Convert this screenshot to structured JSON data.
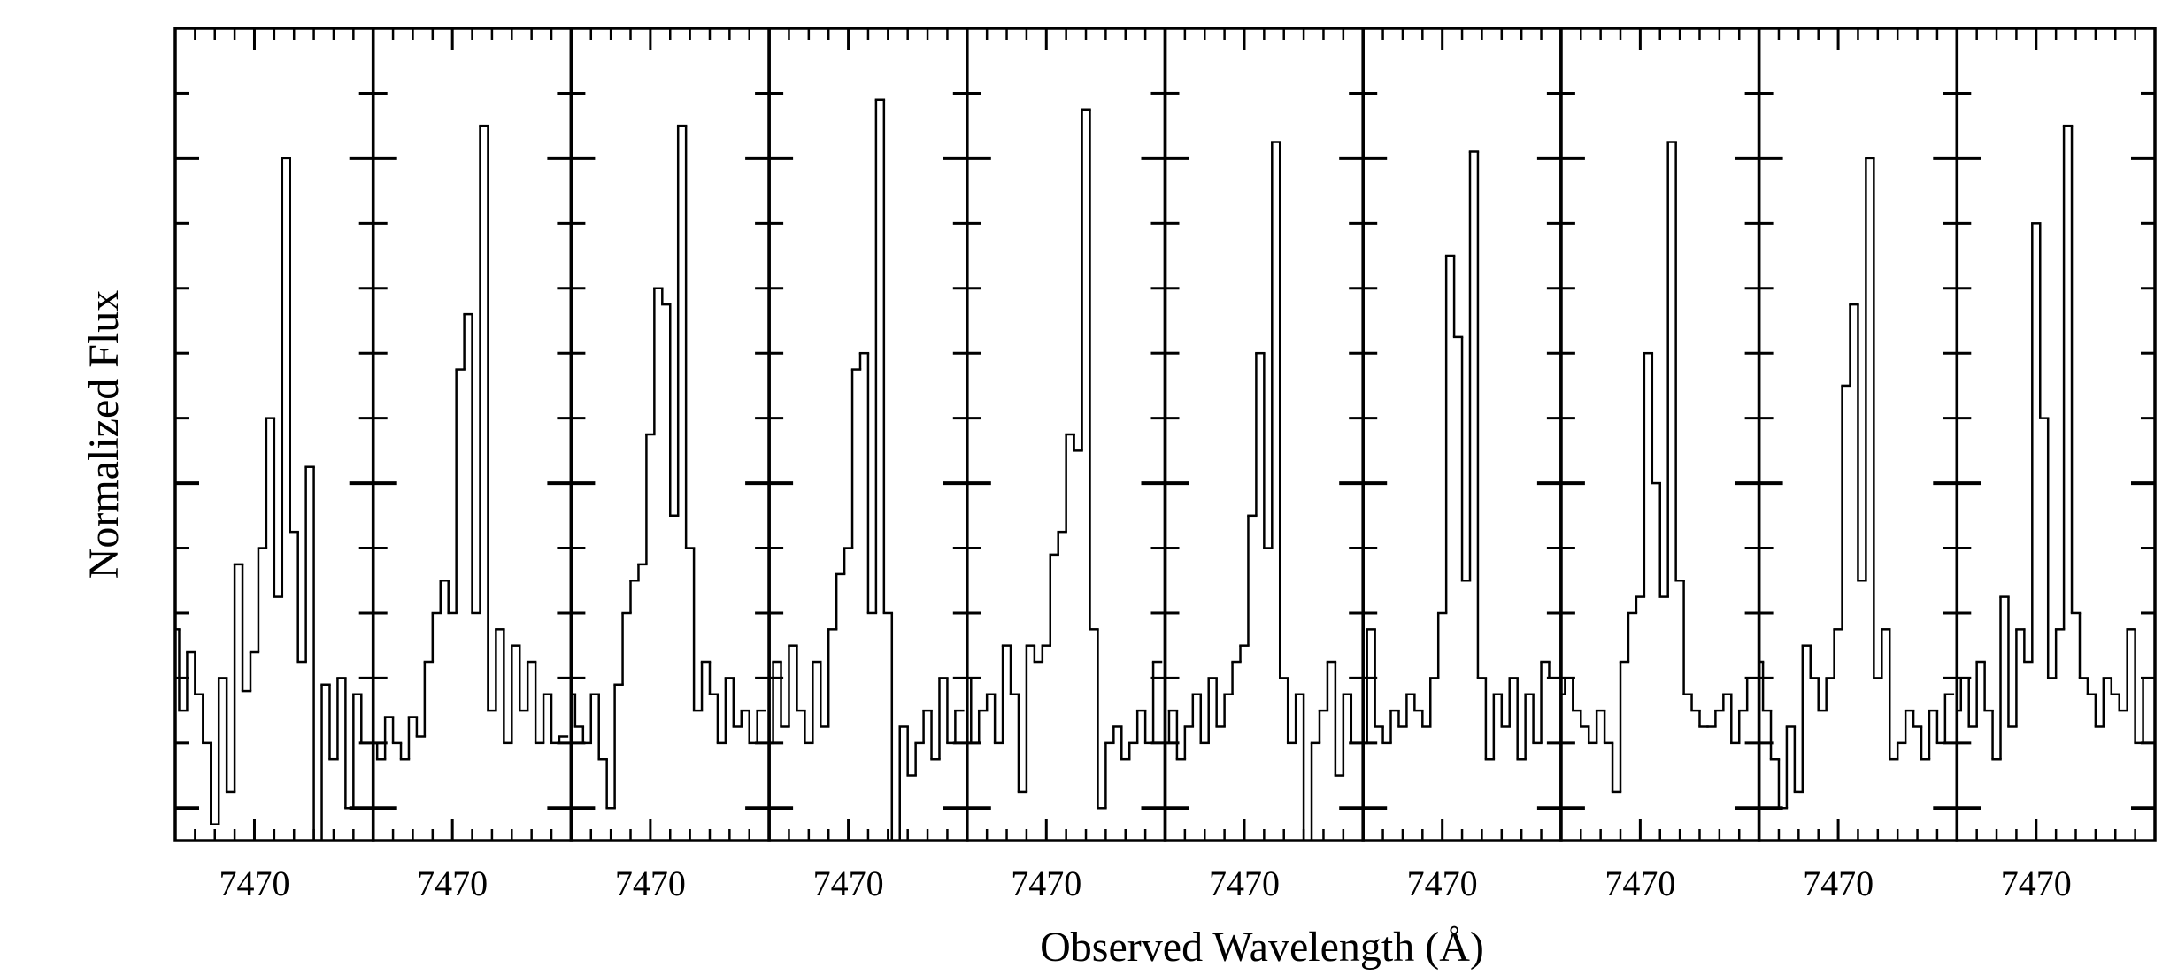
{
  "xlabel": "Observed Wavelength (Å)",
  "ylabel": "Normalized Flux",
  "chart_data": [
    {
      "type": "step",
      "xlim": [
        7466,
        7476
      ],
      "xticks": [
        7470
      ],
      "xminorticks": [
        7467,
        7468,
        7469,
        7471,
        7472,
        7473,
        7474,
        7475
      ],
      "ylim": [
        -0.1,
        2.4
      ],
      "yticks": [
        0,
        0.2,
        0.4,
        0.6,
        0.8,
        1,
        1.2,
        1.4,
        1.6,
        1.8,
        2,
        2.2
      ],
      "ymajorticks": [
        0,
        1,
        2
      ],
      "color": "#000000",
      "x": [
        7466.0,
        7466.4,
        7466.8,
        7467.2,
        7467.6,
        7468.0,
        7468.4,
        7468.8,
        7469.2,
        7469.6,
        7470.0,
        7470.4,
        7470.8,
        7471.2,
        7471.6,
        7472.0,
        7472.4,
        7472.8,
        7473.2,
        7473.6,
        7474.0,
        7474.4,
        7474.8,
        7475.2,
        7475.6
      ],
      "values": [
        0.55,
        0.3,
        0.48,
        0.35,
        0.2,
        -0.05,
        0.4,
        0.05,
        0.75,
        0.36,
        0.48,
        0.8,
        1.2,
        0.65,
        2.0,
        0.85,
        0.45,
        1.05,
        -0.2,
        0.38,
        0.15,
        0.4,
        0.0,
        0.35,
        0.2
      ]
    },
    {
      "type": "step",
      "xlim": [
        7466,
        7476
      ],
      "xticks": [
        7470
      ],
      "xminorticks": [
        7467,
        7468,
        7469,
        7471,
        7472,
        7473,
        7474,
        7475
      ],
      "ylim": [
        -0.1,
        2.4
      ],
      "yticks": [
        0,
        0.2,
        0.4,
        0.6,
        0.8,
        1,
        1.2,
        1.4,
        1.6,
        1.8,
        2,
        2.2
      ],
      "ymajorticks": [
        0,
        1,
        2
      ],
      "color": "#000000",
      "x": [
        7466.0,
        7466.4,
        7466.8,
        7467.2,
        7467.6,
        7468.0,
        7468.4,
        7468.8,
        7469.2,
        7469.6,
        7470.0,
        7470.4,
        7470.8,
        7471.2,
        7471.6,
        7472.0,
        7472.4,
        7472.8,
        7473.2,
        7473.6,
        7474.0,
        7474.4,
        7474.8,
        7475.2,
        7475.6
      ],
      "values": [
        0.2,
        0.15,
        0.28,
        0.2,
        0.15,
        0.28,
        0.22,
        0.45,
        0.6,
        0.7,
        0.6,
        1.35,
        1.52,
        0.6,
        2.1,
        0.3,
        0.55,
        0.2,
        0.5,
        0.3,
        0.45,
        0.2,
        0.35,
        0.2,
        0.22
      ]
    },
    {
      "type": "step",
      "xlim": [
        7466,
        7476
      ],
      "xticks": [
        7470
      ],
      "xminorticks": [
        7467,
        7468,
        7469,
        7471,
        7472,
        7473,
        7474,
        7475
      ],
      "ylim": [
        -0.1,
        2.4
      ],
      "yticks": [
        0,
        0.2,
        0.4,
        0.6,
        0.8,
        1,
        1.2,
        1.4,
        1.6,
        1.8,
        2,
        2.2
      ],
      "ymajorticks": [
        0,
        1,
        2
      ],
      "color": "#000000",
      "x": [
        7466.0,
        7466.4,
        7466.8,
        7467.2,
        7467.6,
        7468.0,
        7468.4,
        7468.8,
        7469.2,
        7469.6,
        7470.0,
        7470.4,
        7470.8,
        7471.2,
        7471.6,
        7472.0,
        7472.4,
        7472.8,
        7473.2,
        7473.6,
        7474.0,
        7474.4,
        7474.8,
        7475.2,
        7475.6
      ],
      "values": [
        0.35,
        0.25,
        0.2,
        0.35,
        0.15,
        0.0,
        0.38,
        0.6,
        0.7,
        0.75,
        1.15,
        1.6,
        1.55,
        0.9,
        2.1,
        0.8,
        0.3,
        0.45,
        0.35,
        0.2,
        0.4,
        0.25,
        0.3,
        0.2,
        0.3
      ]
    },
    {
      "type": "step",
      "xlim": [
        7466,
        7476
      ],
      "xticks": [
        7470
      ],
      "xminorticks": [
        7467,
        7468,
        7469,
        7471,
        7472,
        7473,
        7474,
        7475
      ],
      "ylim": [
        -0.1,
        2.4
      ],
      "yticks": [
        0,
        0.2,
        0.4,
        0.6,
        0.8,
        1,
        1.2,
        1.4,
        1.6,
        1.8,
        2,
        2.2
      ],
      "ymajorticks": [
        0,
        1,
        2
      ],
      "color": "#000000",
      "x": [
        7466.0,
        7466.4,
        7466.8,
        7467.2,
        7467.6,
        7468.0,
        7468.4,
        7468.8,
        7469.2,
        7469.6,
        7470.0,
        7470.4,
        7470.8,
        7471.2,
        7471.6,
        7472.0,
        7472.4,
        7472.8,
        7473.2,
        7473.6,
        7474.0,
        7474.4,
        7474.8,
        7475.2,
        7475.6
      ],
      "values": [
        0.2,
        0.45,
        0.25,
        0.5,
        0.3,
        0.2,
        0.45,
        0.25,
        0.55,
        0.72,
        0.8,
        1.35,
        1.4,
        0.6,
        2.18,
        0.6,
        -0.15,
        0.25,
        0.1,
        0.2,
        0.3,
        0.15,
        0.4,
        0.2,
        0.3
      ]
    },
    {
      "type": "step",
      "xlim": [
        7466,
        7476
      ],
      "xticks": [
        7470
      ],
      "xminorticks": [
        7467,
        7468,
        7469,
        7471,
        7472,
        7473,
        7474,
        7475
      ],
      "ylim": [
        -0.1,
        2.4
      ],
      "yticks": [
        0,
        0.2,
        0.4,
        0.6,
        0.8,
        1,
        1.2,
        1.4,
        1.6,
        1.8,
        2,
        2.2
      ],
      "ymajorticks": [
        0,
        1,
        2
      ],
      "color": "#000000",
      "x": [
        7466.0,
        7466.4,
        7466.8,
        7467.2,
        7467.6,
        7468.0,
        7468.4,
        7468.8,
        7469.2,
        7469.6,
        7470.0,
        7470.4,
        7470.8,
        7471.2,
        7471.6,
        7472.0,
        7472.4,
        7472.8,
        7473.2,
        7473.6,
        7474.0,
        7474.4,
        7474.8,
        7475.2,
        7475.6
      ],
      "values": [
        0.4,
        0.2,
        0.3,
        0.35,
        0.2,
        0.5,
        0.35,
        0.05,
        0.5,
        0.45,
        0.5,
        0.78,
        0.85,
        1.15,
        1.1,
        2.15,
        0.55,
        0.0,
        0.2,
        0.25,
        0.15,
        0.2,
        0.3,
        0.2,
        0.45
      ]
    },
    {
      "type": "step",
      "xlim": [
        7466,
        7476
      ],
      "xticks": [
        7470
      ],
      "xminorticks": [
        7467,
        7468,
        7469,
        7471,
        7472,
        7473,
        7474,
        7475
      ],
      "ylim": [
        -0.1,
        2.4
      ],
      "yticks": [
        0,
        0.2,
        0.4,
        0.6,
        0.8,
        1,
        1.2,
        1.4,
        1.6,
        1.8,
        2,
        2.2
      ],
      "ymajorticks": [
        0,
        1,
        2
      ],
      "color": "#000000",
      "x": [
        7466.0,
        7466.4,
        7466.8,
        7467.2,
        7467.6,
        7468.0,
        7468.4,
        7468.8,
        7469.2,
        7469.6,
        7470.0,
        7470.4,
        7470.8,
        7471.2,
        7471.6,
        7472.0,
        7472.4,
        7472.8,
        7473.2,
        7473.6,
        7474.0,
        7474.4,
        7474.8,
        7475.2,
        7475.6
      ],
      "values": [
        0.2,
        0.3,
        0.15,
        0.25,
        0.35,
        0.2,
        0.4,
        0.25,
        0.35,
        0.45,
        0.5,
        0.9,
        1.4,
        0.8,
        2.05,
        0.4,
        0.2,
        0.35,
        -0.1,
        0.2,
        0.3,
        0.45,
        0.1,
        0.35,
        0.2
      ]
    },
    {
      "type": "step",
      "xlim": [
        7466,
        7476
      ],
      "xticks": [
        7470
      ],
      "xminorticks": [
        7467,
        7468,
        7469,
        7471,
        7472,
        7473,
        7474,
        7475
      ],
      "ylim": [
        -0.1,
        2.4
      ],
      "yticks": [
        0,
        0.2,
        0.4,
        0.6,
        0.8,
        1,
        1.2,
        1.4,
        1.6,
        1.8,
        2,
        2.2
      ],
      "ymajorticks": [
        0,
        1,
        2
      ],
      "color": "#000000",
      "x": [
        7466.0,
        7466.4,
        7466.8,
        7467.2,
        7467.6,
        7468.0,
        7468.4,
        7468.8,
        7469.2,
        7469.6,
        7470.0,
        7470.4,
        7470.8,
        7471.2,
        7471.6,
        7472.0,
        7472.4,
        7472.8,
        7473.2,
        7473.6,
        7474.0,
        7474.4,
        7474.8,
        7475.2,
        7475.6
      ],
      "values": [
        0.2,
        0.55,
        0.25,
        0.2,
        0.3,
        0.25,
        0.35,
        0.3,
        0.25,
        0.4,
        0.6,
        1.7,
        1.45,
        0.7,
        2.02,
        0.4,
        0.15,
        0.35,
        0.25,
        0.4,
        0.15,
        0.35,
        0.2,
        0.45,
        0.4
      ]
    },
    {
      "type": "step",
      "xlim": [
        7466,
        7476
      ],
      "xticks": [
        7470
      ],
      "xminorticks": [
        7467,
        7468,
        7469,
        7471,
        7472,
        7473,
        7474,
        7475
      ],
      "ylim": [
        -0.1,
        2.4
      ],
      "yticks": [
        0,
        0.2,
        0.4,
        0.6,
        0.8,
        1,
        1.2,
        1.4,
        1.6,
        1.8,
        2,
        2.2
      ],
      "ymajorticks": [
        0,
        1,
        2
      ],
      "color": "#000000",
      "x": [
        7466.0,
        7466.4,
        7466.8,
        7467.2,
        7467.6,
        7468.0,
        7468.4,
        7468.8,
        7469.2,
        7469.6,
        7470.0,
        7470.4,
        7470.8,
        7471.2,
        7471.6,
        7472.0,
        7472.4,
        7472.8,
        7473.2,
        7473.6,
        7474.0,
        7474.4,
        7474.8,
        7475.2,
        7475.6
      ],
      "values": [
        0.35,
        0.4,
        0.3,
        0.25,
        0.2,
        0.3,
        0.2,
        0.05,
        0.45,
        0.6,
        0.65,
        1.4,
        1.0,
        0.65,
        2.05,
        0.7,
        0.35,
        0.3,
        0.25,
        0.25,
        0.3,
        0.35,
        0.2,
        0.3,
        0.4
      ]
    },
    {
      "type": "step",
      "xlim": [
        7466,
        7476
      ],
      "xticks": [
        7470
      ],
      "xminorticks": [
        7467,
        7468,
        7469,
        7471,
        7472,
        7473,
        7474,
        7475
      ],
      "ylim": [
        -0.1,
        2.4
      ],
      "yticks": [
        0,
        0.2,
        0.4,
        0.6,
        0.8,
        1,
        1.2,
        1.4,
        1.6,
        1.8,
        2,
        2.2
      ],
      "ymajorticks": [
        0,
        1,
        2
      ],
      "color": "#000000",
      "x": [
        7466.0,
        7466.4,
        7466.8,
        7467.2,
        7467.6,
        7468.0,
        7468.4,
        7468.8,
        7469.2,
        7469.6,
        7470.0,
        7470.4,
        7470.8,
        7471.2,
        7471.6,
        7472.0,
        7472.4,
        7472.8,
        7473.2,
        7473.6,
        7474.0,
        7474.4,
        7474.8,
        7475.2,
        7475.6
      ],
      "values": [
        0.45,
        0.3,
        0.15,
        0.0,
        0.25,
        0.05,
        0.5,
        0.4,
        0.3,
        0.4,
        0.55,
        1.3,
        1.55,
        0.7,
        2.0,
        0.4,
        0.55,
        0.15,
        0.2,
        0.3,
        0.25,
        0.15,
        0.3,
        0.2,
        0.35
      ]
    },
    {
      "type": "step",
      "xlim": [
        7466,
        7476
      ],
      "xticks": [
        7470
      ],
      "xminorticks": [
        7467,
        7468,
        7469,
        7471,
        7472,
        7473,
        7474,
        7475
      ],
      "ylim": [
        -0.1,
        2.4
      ],
      "yticks": [
        0,
        0.2,
        0.4,
        0.6,
        0.8,
        1,
        1.2,
        1.4,
        1.6,
        1.8,
        2,
        2.2
      ],
      "ymajorticks": [
        0,
        1,
        2
      ],
      "color": "#000000",
      "x": [
        7466.0,
        7466.4,
        7466.8,
        7467.2,
        7467.6,
        7468.0,
        7468.4,
        7468.8,
        7469.2,
        7469.6,
        7470.0,
        7470.4,
        7470.8,
        7471.2,
        7471.6,
        7472.0,
        7472.4,
        7472.8,
        7473.2,
        7473.6,
        7474.0,
        7474.4,
        7474.8,
        7475.2,
        7475.6
      ],
      "values": [
        0.3,
        0.4,
        0.25,
        0.45,
        0.3,
        0.15,
        0.65,
        0.25,
        0.55,
        0.45,
        1.8,
        1.2,
        0.4,
        0.55,
        2.1,
        0.6,
        0.4,
        0.35,
        0.25,
        0.4,
        0.35,
        0.3,
        0.55,
        0.2,
        0.4
      ]
    }
  ]
}
